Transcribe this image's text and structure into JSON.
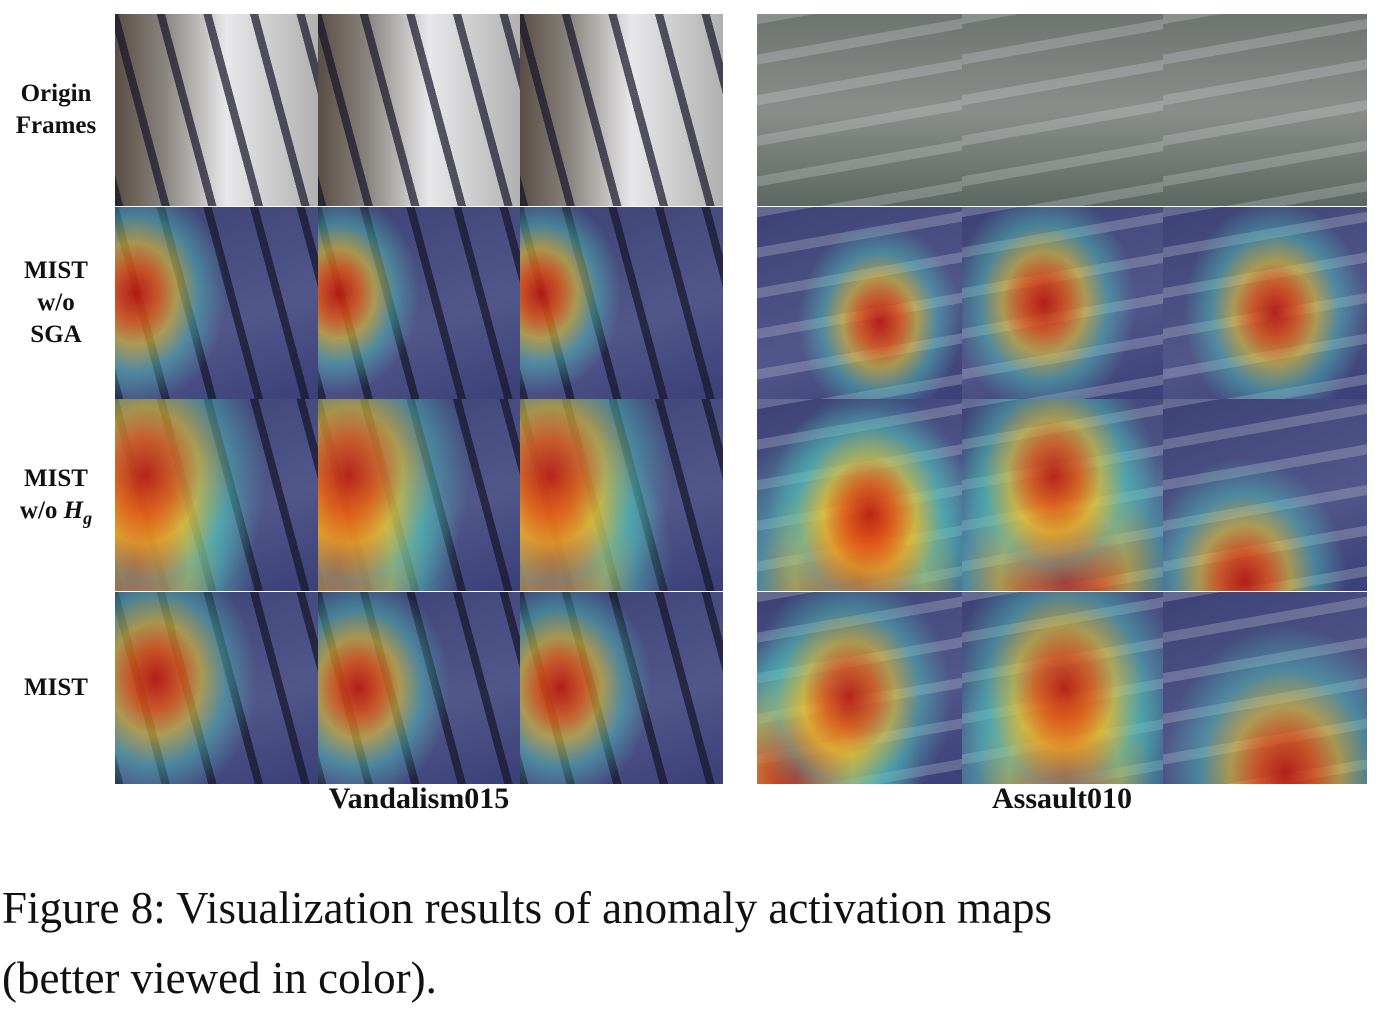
{
  "row_labels": [
    {
      "lines": [
        "Origin",
        "Frames"
      ]
    },
    {
      "lines": [
        "MIST",
        "w/o",
        "SGA"
      ]
    },
    {
      "lines": [
        "MIST"
      ],
      "math": {
        "prefix": "w/o",
        "symbol": "H",
        "subscript": "g"
      }
    },
    {
      "lines": [
        "MIST"
      ]
    }
  ],
  "groups": [
    {
      "name": "Vandalism015"
    },
    {
      "name": "Assault010"
    }
  ],
  "caption": {
    "lines": [
      "Figure 8: Visualization results of anomaly activation maps",
      "(better viewed in color)."
    ]
  }
}
